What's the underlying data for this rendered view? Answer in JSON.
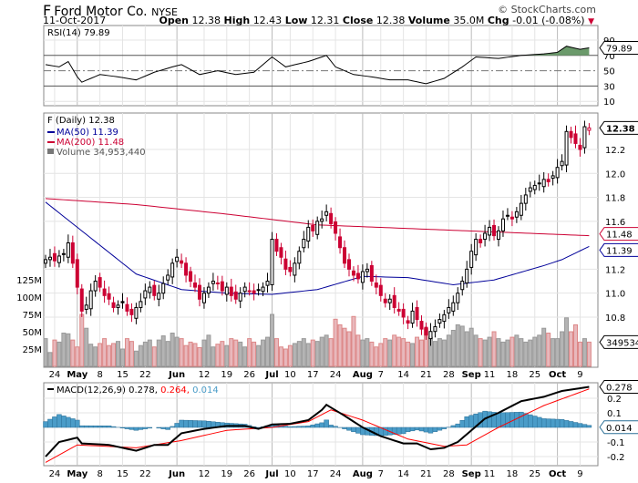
{
  "header": {
    "symbol": "F",
    "company": "Ford Motor Co.",
    "exchange": "NYSE",
    "date": "11-Oct-2017",
    "copyright": "© StockCharts.com",
    "open_label": "Open",
    "open": "12.38",
    "high_label": "High",
    "high": "12.43",
    "low_label": "Low",
    "low": "12.31",
    "close_label": "Close",
    "close": "12.38",
    "volume_label": "Volume",
    "volume": "35.0M",
    "chg_label": "Chg",
    "chg": "-0.01 (-0.08%)"
  },
  "colors": {
    "up": "#000000",
    "down": "#cc0033",
    "ma50": "#000099",
    "ma200": "#cc0033",
    "vol_up": "#b4b4b4",
    "vol_down": "#e8b8bc",
    "rsi_fill": "#6b9a6b",
    "macd": "#000000",
    "signal": "#ff0000",
    "hist": "#4a9cc8"
  },
  "chart_data": [
    {
      "type": "line",
      "name": "RSI",
      "legend": "RSI(14) 79.89",
      "last_tag": "79.89",
      "ylim": [
        0,
        100
      ],
      "yticks": [
        "90",
        "70",
        "50",
        "30",
        "10"
      ],
      "ytick_values": [
        90,
        70,
        50,
        30,
        10
      ],
      "points": [
        [
          0,
          58
        ],
        [
          3,
          55
        ],
        [
          5,
          62
        ],
        [
          7,
          42
        ],
        [
          8,
          35
        ],
        [
          10,
          40
        ],
        [
          12,
          45
        ],
        [
          16,
          42
        ],
        [
          20,
          38
        ],
        [
          24,
          48
        ],
        [
          28,
          55
        ],
        [
          30,
          58
        ],
        [
          34,
          45
        ],
        [
          38,
          50
        ],
        [
          42,
          45
        ],
        [
          46,
          48
        ],
        [
          50,
          68
        ],
        [
          53,
          55
        ],
        [
          58,
          62
        ],
        [
          62,
          70
        ],
        [
          64,
          55
        ],
        [
          68,
          45
        ],
        [
          72,
          42
        ],
        [
          76,
          38
        ],
        [
          80,
          38
        ],
        [
          84,
          33
        ],
        [
          88,
          40
        ],
        [
          92,
          55
        ],
        [
          95,
          68
        ],
        [
          100,
          66
        ],
        [
          105,
          70
        ],
        [
          110,
          72
        ],
        [
          113,
          74
        ],
        [
          115,
          82
        ],
        [
          118,
          78
        ],
        [
          120,
          79.89
        ]
      ]
    },
    {
      "type": "candlestick",
      "name": "Price",
      "legend": {
        "price": "F (Daily) 12.38",
        "ma50": "MA(50) 11.39",
        "ma200": "MA(200) 11.48",
        "volume": "Volume 34,953,440"
      },
      "tags": {
        "close": "12.38",
        "ma200": "11.48",
        "ma50": "11.39",
        "volume": "34953440"
      },
      "yticks": [
        "12.2",
        "12.0",
        "11.8",
        "11.6",
        "11.2",
        "11.0",
        "10.8"
      ],
      "ytick_values": [
        12.2,
        12.0,
        11.8,
        11.6,
        11.2,
        11.0,
        10.8
      ],
      "vol_ticks": [
        "125M",
        "100M",
        "75M",
        "50M",
        "25M"
      ],
      "vol_tick_values": [
        125,
        100,
        75,
        50,
        25
      ],
      "closes": [
        11.28,
        11.3,
        11.27,
        11.31,
        11.33,
        11.42,
        11.25,
        11.05,
        10.85,
        10.9,
        11.02,
        11.1,
        11.05,
        10.98,
        10.95,
        10.88,
        10.9,
        10.92,
        10.85,
        10.82,
        10.88,
        10.93,
        11.02,
        11.05,
        10.98,
        11.0,
        11.08,
        11.15,
        11.25,
        11.3,
        11.25,
        11.15,
        11.1,
        11.05,
        10.95,
        11.0,
        11.05,
        11.1,
        11.08,
        11.02,
        11.05,
        10.98,
        10.95,
        11.0,
        11.05,
        11.02,
        11.0,
        11.03,
        11.05,
        11.1,
        11.45,
        11.35,
        11.3,
        11.2,
        11.18,
        11.25,
        11.35,
        11.45,
        11.55,
        11.52,
        11.6,
        11.62,
        11.68,
        11.58,
        11.5,
        11.38,
        11.25,
        11.2,
        11.15,
        11.12,
        11.18,
        11.2,
        11.1,
        11.05,
        10.98,
        10.92,
        10.95,
        10.88,
        10.85,
        10.8,
        10.75,
        10.85,
        10.78,
        10.7,
        10.65,
        10.68,
        10.72,
        10.78,
        10.82,
        10.88,
        10.92,
        11.0,
        11.1,
        11.2,
        11.35,
        11.45,
        11.42,
        11.5,
        11.55,
        11.48,
        11.52,
        11.62,
        11.65,
        11.62,
        11.68,
        11.75,
        11.82,
        11.88,
        11.9,
        11.92,
        11.95,
        11.93,
        11.98,
        12.05,
        12.1,
        12.35,
        12.3,
        12.25,
        12.2,
        12.39,
        12.38
      ],
      "volumes_millions": [
        40,
        20,
        38,
        35,
        48,
        47,
        38,
        28,
        75,
        55,
        32,
        28,
        33,
        40,
        30,
        33,
        36,
        25,
        40,
        36,
        22,
        30,
        35,
        38,
        28,
        38,
        44,
        36,
        48,
        42,
        40,
        30,
        35,
        33,
        27,
        38,
        45,
        28,
        32,
        36,
        30,
        40,
        38,
        35,
        28,
        40,
        35,
        30,
        38,
        42,
        75,
        40,
        28,
        25,
        30,
        33,
        36,
        40,
        33,
        38,
        36,
        42,
        45,
        40,
        68,
        60,
        55,
        50,
        72,
        45,
        38,
        40,
        35,
        28,
        33,
        40,
        38,
        45,
        42,
        40,
        35,
        33,
        42,
        38,
        55,
        42,
        36,
        40,
        38,
        45,
        52,
        60,
        58,
        50,
        55,
        45,
        40,
        38,
        42,
        50,
        40,
        35,
        38,
        42,
        45,
        40,
        35,
        38,
        42,
        45,
        55,
        48,
        40,
        40,
        50,
        70,
        50,
        60,
        35,
        40,
        35
      ],
      "ma50": [
        [
          0,
          11.76
        ],
        [
          10,
          11.46
        ],
        [
          20,
          11.16
        ],
        [
          30,
          11.03
        ],
        [
          40,
          11.0
        ],
        [
          50,
          10.99
        ],
        [
          60,
          11.03
        ],
        [
          70,
          11.14
        ],
        [
          80,
          11.13
        ],
        [
          90,
          11.07
        ],
        [
          99,
          11.11
        ],
        [
          110,
          11.23
        ],
        [
          114,
          11.28
        ],
        [
          120,
          11.39
        ]
      ],
      "ma200": [
        [
          0,
          11.79
        ],
        [
          20,
          11.74
        ],
        [
          40,
          11.66
        ],
        [
          60,
          11.57
        ],
        [
          80,
          11.54
        ],
        [
          100,
          11.51
        ],
        [
          120,
          11.48
        ]
      ]
    },
    {
      "type": "line",
      "name": "MACD",
      "legend": {
        "label": "MACD(12,26,9)",
        "macd": "0.278",
        "signal": "0.264",
        "hist": "0.014"
      },
      "tags": {
        "macd": "0.278",
        "hist": "0.014"
      },
      "yticks": [
        "0.2",
        "0.1",
        "-0.1",
        "-0.2"
      ],
      "ytick_values": [
        0.2,
        0.1,
        -0.1,
        -0.2
      ],
      "macd": [
        [
          0,
          -0.2
        ],
        [
          3,
          -0.1
        ],
        [
          7,
          -0.07
        ],
        [
          8,
          -0.11
        ],
        [
          14,
          -0.12
        ],
        [
          20,
          -0.16
        ],
        [
          24,
          -0.12
        ],
        [
          27,
          -0.12
        ],
        [
          30,
          -0.04
        ],
        [
          35,
          -0.01
        ],
        [
          40,
          0.01
        ],
        [
          44,
          0.01
        ],
        [
          47,
          -0.01
        ],
        [
          50,
          0.02
        ],
        [
          54,
          0.025
        ],
        [
          58,
          0.05
        ],
        [
          61,
          0.12
        ],
        [
          62,
          0.155
        ],
        [
          66,
          0.08
        ],
        [
          70,
          0.0
        ],
        [
          74,
          -0.06
        ],
        [
          79,
          -0.11
        ],
        [
          82,
          -0.11
        ],
        [
          85,
          -0.15
        ],
        [
          88,
          -0.14
        ],
        [
          91,
          -0.1
        ],
        [
          94,
          -0.02
        ],
        [
          97,
          0.06
        ],
        [
          100,
          0.1
        ],
        [
          105,
          0.18
        ],
        [
          110,
          0.21
        ],
        [
          114,
          0.25
        ],
        [
          120,
          0.278
        ]
      ],
      "signal": [
        [
          0,
          -0.24
        ],
        [
          7,
          -0.12
        ],
        [
          20,
          -0.14
        ],
        [
          30,
          -0.09
        ],
        [
          40,
          -0.02
        ],
        [
          50,
          0.0
        ],
        [
          58,
          0.04
        ],
        [
          63,
          0.12
        ],
        [
          70,
          0.05
        ],
        [
          80,
          -0.08
        ],
        [
          88,
          -0.13
        ],
        [
          93,
          -0.12
        ],
        [
          100,
          0.0
        ],
        [
          110,
          0.15
        ],
        [
          120,
          0.264
        ]
      ]
    }
  ],
  "xaxis": {
    "labels": [
      {
        "t": "24",
        "i": 2
      },
      {
        "t": "May",
        "i": 7,
        "b": true
      },
      {
        "t": "8",
        "i": 12
      },
      {
        "t": "15",
        "i": 17
      },
      {
        "t": "22",
        "i": 22
      },
      {
        "t": "Jun",
        "i": 29,
        "b": true
      },
      {
        "t": "12",
        "i": 35
      },
      {
        "t": "19",
        "i": 40
      },
      {
        "t": "26",
        "i": 45
      },
      {
        "t": "Jul",
        "i": 50,
        "b": true
      },
      {
        "t": "10",
        "i": 54
      },
      {
        "t": "17",
        "i": 59
      },
      {
        "t": "24",
        "i": 64
      },
      {
        "t": "Aug",
        "i": 70,
        "b": true
      },
      {
        "t": "7",
        "i": 74
      },
      {
        "t": "14",
        "i": 79
      },
      {
        "t": "21",
        "i": 84
      },
      {
        "t": "28",
        "i": 89
      },
      {
        "t": "Sep",
        "i": 94,
        "b": true
      },
      {
        "t": "11",
        "i": 98
      },
      {
        "t": "18",
        "i": 103
      },
      {
        "t": "25",
        "i": 108
      },
      {
        "t": "Oct",
        "i": 113,
        "b": true
      },
      {
        "t": "9",
        "i": 118
      }
    ]
  }
}
